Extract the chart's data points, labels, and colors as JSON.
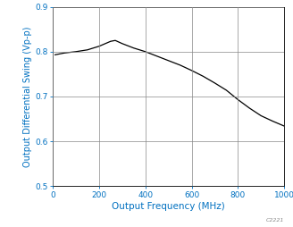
{
  "x": [
    10,
    50,
    100,
    150,
    200,
    250,
    270,
    300,
    350,
    400,
    450,
    500,
    550,
    600,
    650,
    700,
    750,
    800,
    850,
    900,
    950,
    1000
  ],
  "y": [
    0.793,
    0.797,
    0.8,
    0.804,
    0.812,
    0.823,
    0.825,
    0.818,
    0.808,
    0.8,
    0.79,
    0.78,
    0.77,
    0.758,
    0.745,
    0.73,
    0.714,
    0.693,
    0.674,
    0.657,
    0.645,
    0.634
  ],
  "xlabel": "Output Frequency (MHz)",
  "ylabel": "Output Differential Swing (Vp-p)",
  "xlim": [
    0,
    1000
  ],
  "ylim": [
    0.5,
    0.9
  ],
  "xticks": [
    0,
    200,
    400,
    600,
    800,
    1000
  ],
  "yticks": [
    0.5,
    0.6,
    0.7,
    0.8,
    0.9
  ],
  "line_color": "#000000",
  "grid_color": "#aaaaaa",
  "axis_color": "#0070C0",
  "label_color": "#0070C0",
  "watermark": "C2221",
  "figsize": [
    3.28,
    2.54
  ],
  "dpi": 100
}
